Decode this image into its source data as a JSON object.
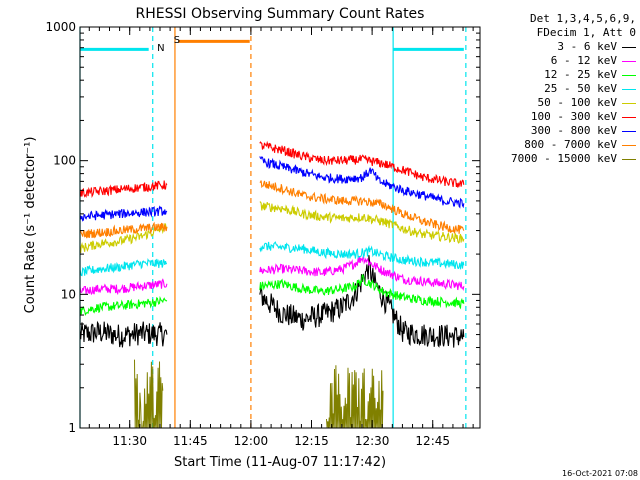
{
  "chart_data": {
    "type": "line",
    "title": "RHESSI Observing Summary Count Rates",
    "xlabel": "Start Time (11-Aug-07 11:17:42)",
    "ylabel": "Count Rate (s⁻¹ detector⁻¹)",
    "x_unit": "minutes after 11:17:42",
    "xlim": [
      0,
      99
    ],
    "ylim": [
      1,
      1000
    ],
    "yscale": "log",
    "x_ticks": [
      "11:30",
      "11:45",
      "12:00",
      "12:15",
      "12:30",
      "12:45"
    ],
    "x_tick_values": [
      12.3,
      27.3,
      42.3,
      57.3,
      72.3,
      87.3
    ],
    "y_ticks": [
      "1",
      "10",
      "100",
      "1000"
    ],
    "y_tick_values": [
      1,
      10,
      100,
      1000
    ],
    "legend": {
      "placement": "right",
      "header": [
        "Det 1,3,4,5,6,9,",
        "FDecim 1, Att 0"
      ]
    },
    "annotations": [
      {
        "text": "S",
        "x": 24,
        "color": "#ff7f00"
      },
      {
        "text": "N",
        "x": 20,
        "color": "#00e5ee"
      }
    ],
    "flag_bands": [
      {
        "label": "N",
        "color": "#00e5ee",
        "y": 680,
        "segments": [
          [
            0,
            17
          ],
          [
            77.5,
            95
          ]
        ]
      },
      {
        "label": "S",
        "color": "#ff7f00",
        "y": 780,
        "segments": [
          [
            24.3,
            42
          ]
        ]
      }
    ],
    "vertical_markers": [
      {
        "color": "#00e5ee",
        "style": "solid",
        "x": 0
      },
      {
        "color": "#00e5ee",
        "style": "dashed",
        "x": 18
      },
      {
        "color": "#ff7f00",
        "style": "solid",
        "x": 23.5
      },
      {
        "color": "#ff7f00",
        "style": "dashed",
        "x": 42.3
      },
      {
        "color": "#00e5ee",
        "style": "solid",
        "x": 77.5
      },
      {
        "color": "#00e5ee",
        "style": "dashed",
        "x": 95.5
      }
    ],
    "series": [
      {
        "name": "3 - 6 keV",
        "color": "#000000",
        "segments": [
          [
            [
              0,
              5.0
            ],
            [
              5,
              5.2
            ],
            [
              10,
              4.9
            ],
            [
              15,
              5.1
            ],
            [
              21.5,
              5.0
            ]
          ],
          [
            [
              44.5,
              10
            ],
            [
              47,
              8.5
            ],
            [
              50,
              7.2
            ],
            [
              55,
              6.5
            ],
            [
              60,
              7.0
            ],
            [
              65,
              8.0
            ],
            [
              68,
              10
            ],
            [
              70,
              13
            ],
            [
              71.5,
              16
            ],
            [
              73,
              12
            ],
            [
              75,
              9.5
            ],
            [
              77,
              7.5
            ],
            [
              80,
              5.2
            ],
            [
              85,
              5.0
            ],
            [
              90,
              4.9
            ],
            [
              95,
              4.8
            ]
          ]
        ]
      },
      {
        "name": "6 - 12 keV",
        "color": "#ff00ff",
        "segments": [
          [
            [
              0,
              10.5
            ],
            [
              5,
              11
            ],
            [
              10,
              11
            ],
            [
              15,
              11.5
            ],
            [
              21.5,
              12
            ]
          ],
          [
            [
              44.5,
              15
            ],
            [
              50,
              15.5
            ],
            [
              55,
              15
            ],
            [
              60,
              14.5
            ],
            [
              65,
              15.5
            ],
            [
              68,
              17
            ],
            [
              70,
              19
            ],
            [
              72,
              17
            ],
            [
              75,
              15
            ],
            [
              80,
              13
            ],
            [
              85,
              12.5
            ],
            [
              90,
              12
            ],
            [
              95,
              11.5
            ]
          ]
        ]
      },
      {
        "name": "12 - 25 keV",
        "color": "#00ff00",
        "segments": [
          [
            [
              0,
              7.5
            ],
            [
              5,
              8
            ],
            [
              10,
              8.2
            ],
            [
              15,
              8.5
            ],
            [
              21.5,
              9
            ]
          ],
          [
            [
              44.5,
              11.5
            ],
            [
              50,
              12
            ],
            [
              55,
              11
            ],
            [
              60,
              10.5
            ],
            [
              65,
              11
            ],
            [
              68,
              11.5
            ],
            [
              70,
              13
            ],
            [
              72,
              12
            ],
            [
              75,
              10.5
            ],
            [
              80,
              9.5
            ],
            [
              85,
              9
            ],
            [
              90,
              8.8
            ],
            [
              95,
              8.5
            ]
          ]
        ]
      },
      {
        "name": "25 - 50 keV",
        "color": "#00e5ee",
        "segments": [
          [
            [
              0,
              14.5
            ],
            [
              5,
              15.5
            ],
            [
              10,
              16
            ],
            [
              15,
              17
            ],
            [
              21.5,
              17
            ]
          ],
          [
            [
              44.5,
              23
            ],
            [
              50,
              22.5
            ],
            [
              55,
              22
            ],
            [
              60,
              20.5
            ],
            [
              65,
              20
            ],
            [
              68,
              20
            ],
            [
              70,
              20.5
            ],
            [
              72,
              21
            ],
            [
              75,
              19.5
            ],
            [
              80,
              18
            ],
            [
              85,
              17.5
            ],
            [
              90,
              17
            ],
            [
              95,
              16.5
            ]
          ]
        ]
      },
      {
        "name": "50 - 100 keV",
        "color": "#cccc00",
        "segments": [
          [
            [
              0,
              22
            ],
            [
              5,
              24
            ],
            [
              10,
              25
            ],
            [
              15,
              27
            ],
            [
              21.5,
              32
            ]
          ],
          [
            [
              44.5,
              46
            ],
            [
              50,
              44
            ],
            [
              55,
              40
            ],
            [
              60,
              38
            ],
            [
              65,
              37
            ],
            [
              70,
              38
            ],
            [
              75,
              35
            ],
            [
              80,
              31
            ],
            [
              85,
              28
            ],
            [
              90,
              27
            ],
            [
              95,
              26
            ]
          ]
        ]
      },
      {
        "name": "100 - 300 keV",
        "color": "#ff0000",
        "segments": [
          [
            [
              0,
              57
            ],
            [
              5,
              59
            ],
            [
              10,
              61
            ],
            [
              15,
              63
            ],
            [
              21.5,
              66
            ]
          ],
          [
            [
              44.5,
              130
            ],
            [
              50,
              120
            ],
            [
              55,
              108
            ],
            [
              60,
              100
            ],
            [
              65,
              100
            ],
            [
              70,
              102
            ],
            [
              75,
              95
            ],
            [
              80,
              85
            ],
            [
              85,
              75
            ],
            [
              90,
              70
            ],
            [
              95,
              66
            ]
          ]
        ]
      },
      {
        "name": "300 - 800 keV",
        "color": "#0000ff",
        "segments": [
          [
            [
              0,
              38
            ],
            [
              5,
              39
            ],
            [
              10,
              40
            ],
            [
              15,
              41
            ],
            [
              21.5,
              42
            ]
          ],
          [
            [
              44.5,
              100
            ],
            [
              50,
              90
            ],
            [
              55,
              82
            ],
            [
              60,
              75
            ],
            [
              65,
              73
            ],
            [
              70,
              75
            ],
            [
              72,
              85
            ],
            [
              74,
              70
            ],
            [
              80,
              60
            ],
            [
              85,
              55
            ],
            [
              90,
              50
            ],
            [
              95,
              48
            ]
          ]
        ]
      },
      {
        "name": "800 - 7000 keV",
        "color": "#ff7f00",
        "segments": [
          [
            [
              0,
              28
            ],
            [
              5,
              29
            ],
            [
              10,
              30
            ],
            [
              15,
              31
            ],
            [
              21.5,
              32
            ]
          ],
          [
            [
              44.5,
              68
            ],
            [
              50,
              62
            ],
            [
              55,
              55
            ],
            [
              60,
              52
            ],
            [
              65,
              50
            ],
            [
              70,
              50
            ],
            [
              75,
              47
            ],
            [
              80,
              40
            ],
            [
              85,
              35
            ],
            [
              90,
              32
            ],
            [
              95,
              30
            ]
          ]
        ]
      },
      {
        "name": "7000 - 15000 keV",
        "color": "#808000",
        "segments": [
          [
            [
              13.5,
              1.9
            ],
            [
              15,
              1.6
            ],
            [
              17,
              1.8
            ],
            [
              19,
              1.7
            ],
            [
              20.5,
              1.9
            ]
          ],
          [
            [
              61,
              1.9
            ],
            [
              63,
              1.7
            ],
            [
              65,
              1.8
            ],
            [
              67,
              1.6
            ],
            [
              69,
              1.9
            ],
            [
              71,
              1.8
            ],
            [
              73,
              1.7
            ],
            [
              75,
              1.9
            ]
          ]
        ]
      }
    ]
  },
  "timestamp": "16-Oct-2021 07:08"
}
